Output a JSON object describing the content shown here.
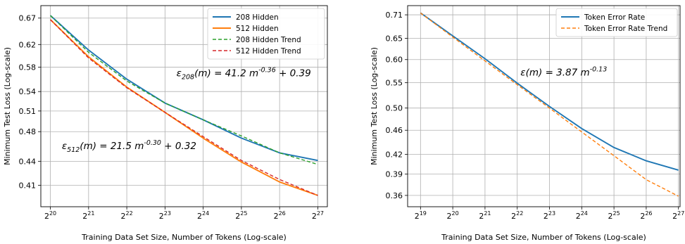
{
  "chart_data": [
    {
      "type": "line",
      "title": "",
      "xlabel": "Training Data Set Size, Number of Tokens (Log-scale)",
      "ylabel": "Minimum Test Loss (Log-scale)",
      "x_scale": "log2",
      "y_scale": "log",
      "xlim_exp": [
        19.75,
        27.25
      ],
      "ylim": [
        0.385,
        0.695
      ],
      "x_ticks_exp": [
        20,
        21,
        22,
        23,
        24,
        25,
        26,
        27
      ],
      "x_tick_base": "2",
      "y_ticks": [
        0.41,
        0.44,
        0.48,
        0.51,
        0.54,
        0.58,
        0.62,
        0.67
      ],
      "y_tick_labels": [
        "0.41",
        "0.44",
        "0.48",
        "0.51",
        "0.54",
        "0.58",
        "0.62",
        "0.67"
      ],
      "grid": true,
      "legend_position": "top-right",
      "series": [
        {
          "name": "208 Hidden",
          "style": "solid",
          "color": "#1f77b4",
          "x_exp": [
            20,
            21,
            22,
            23,
            24,
            25,
            26,
            27
          ],
          "y": [
            0.675,
            0.61,
            0.56,
            0.522,
            0.497,
            0.471,
            0.451,
            0.441
          ]
        },
        {
          "name": "512 Hidden",
          "style": "solid",
          "color": "#ff7f0e",
          "x_exp": [
            20,
            21,
            22,
            23,
            24,
            25,
            26,
            27
          ],
          "y": [
            0.667,
            0.598,
            0.547,
            0.508,
            0.471,
            0.439,
            0.414,
            0.398
          ]
        },
        {
          "name": "208 Hidden Trend",
          "style": "dashed",
          "color": "#2ca02c",
          "x_exp": [
            20,
            21,
            22,
            23,
            24,
            25,
            26,
            27
          ],
          "y": [
            0.675,
            0.606,
            0.557,
            0.522,
            0.497,
            0.474,
            0.451,
            0.436
          ]
        },
        {
          "name": "512 Hidden Trend",
          "style": "dashed",
          "color": "#d62728",
          "x_exp": [
            20,
            21,
            22,
            23,
            24,
            25,
            26,
            27
          ],
          "y": [
            0.667,
            0.596,
            0.546,
            0.508,
            0.473,
            0.441,
            0.417,
            0.398
          ]
        }
      ],
      "annotations": [
        {
          "pre": "ε",
          "sub": "208",
          "mid": "(m) = 41.2 m",
          "sup": "-0.36",
          "post": " + 0.39",
          "at_x_exp": 23.3,
          "at_y": 0.565
        },
        {
          "pre": "ε",
          "sub": "512",
          "mid": "(m) = 21.5 m",
          "sup": "-0.30",
          "post": " + 0.32",
          "at_x_exp": 20.3,
          "at_y": 0.456
        }
      ]
    },
    {
      "type": "line",
      "title": "",
      "xlabel": "Training Data Set Size, Number of Tokens (Log-scale)",
      "ylabel": "Minimum Test Loss (Log-scale)",
      "x_scale": "log2",
      "y_scale": "log",
      "xlim_exp": [
        18.6,
        27.05
      ],
      "ylim": [
        0.345,
        0.735
      ],
      "x_ticks_exp": [
        19,
        20,
        21,
        22,
        23,
        24,
        25,
        26,
        27
      ],
      "x_tick_base": "2",
      "y_ticks": [
        0.36,
        0.39,
        0.42,
        0.46,
        0.5,
        0.55,
        0.6,
        0.65,
        0.71
      ],
      "y_tick_labels": [
        "0.36",
        "0.39",
        "0.42",
        "0.46",
        "0.50",
        "0.55",
        "0.60",
        "0.65",
        "0.71"
      ],
      "grid": true,
      "legend_position": "top-right",
      "series": [
        {
          "name": "Token Error Rate",
          "style": "solid",
          "color": "#1f77b4",
          "x_exp": [
            19,
            20,
            21,
            22,
            23,
            24,
            25,
            26,
            27
          ],
          "y": [
            0.715,
            0.656,
            0.602,
            0.549,
            0.503,
            0.463,
            0.431,
            0.41,
            0.396
          ]
        },
        {
          "name": "Token Error Rate Trend",
          "style": "dashed",
          "color": "#ff7f0e",
          "x_exp": [
            19,
            20,
            21,
            22,
            23,
            24,
            25,
            26,
            27
          ],
          "y": [
            0.715,
            0.653,
            0.597,
            0.546,
            0.5,
            0.457,
            0.418,
            0.382,
            0.359
          ]
        }
      ],
      "annotations": [
        {
          "pre": "ε",
          "sub": "",
          "mid": "(m) = 3.87 m",
          "sup": "-0.13",
          "post": "",
          "at_x_exp": 22.1,
          "at_y": 0.565
        }
      ]
    }
  ]
}
